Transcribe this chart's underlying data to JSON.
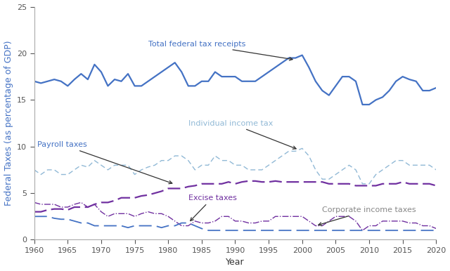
{
  "title": "",
  "xlabel": "Year",
  "ylabel": "Federal Taxes (as percentage of GDP)",
  "xlim": [
    1960,
    2020
  ],
  "ylim": [
    0,
    25
  ],
  "yticks": [
    0,
    5,
    10,
    15,
    20,
    25
  ],
  "xticks": [
    1960,
    1965,
    1970,
    1975,
    1980,
    1985,
    1990,
    1995,
    2000,
    2005,
    2010,
    2015,
    2020
  ],
  "total_federal": {
    "label": "Total federal tax receipts",
    "color": "#4472c4",
    "linestyle": "solid",
    "linewidth": 1.6,
    "years": [
      1960,
      1961,
      1962,
      1963,
      1964,
      1965,
      1966,
      1967,
      1968,
      1969,
      1970,
      1971,
      1972,
      1973,
      1974,
      1975,
      1976,
      1977,
      1978,
      1979,
      1980,
      1981,
      1982,
      1983,
      1984,
      1985,
      1986,
      1987,
      1988,
      1989,
      1990,
      1991,
      1992,
      1993,
      1994,
      1995,
      1996,
      1997,
      1998,
      1999,
      2000,
      2001,
      2002,
      2003,
      2004,
      2005,
      2006,
      2007,
      2008,
      2009,
      2010,
      2011,
      2012,
      2013,
      2014,
      2015,
      2016,
      2017,
      2018,
      2019,
      2020
    ],
    "values": [
      17.0,
      16.8,
      17.0,
      17.2,
      17.0,
      16.5,
      17.2,
      17.8,
      17.2,
      18.8,
      18.0,
      16.5,
      17.2,
      17.0,
      17.8,
      16.5,
      16.5,
      17.0,
      17.5,
      18.0,
      18.5,
      19.0,
      18.0,
      16.5,
      16.5,
      17.0,
      17.0,
      18.0,
      17.5,
      17.5,
      17.5,
      17.0,
      17.0,
      17.0,
      17.5,
      18.0,
      18.5,
      19.0,
      19.5,
      19.5,
      19.8,
      18.5,
      17.0,
      16.0,
      15.5,
      16.5,
      17.5,
      17.5,
      17.0,
      14.5,
      14.5,
      15.0,
      15.3,
      16.0,
      17.0,
      17.5,
      17.2,
      17.0,
      16.0,
      16.0,
      16.3
    ]
  },
  "individual_income": {
    "label": "Individual income tax",
    "color": "#91b9d6",
    "linestyle": "dashed",
    "linewidth": 1.0,
    "dashes": [
      5,
      3
    ],
    "years": [
      1960,
      1961,
      1962,
      1963,
      1964,
      1965,
      1966,
      1967,
      1968,
      1969,
      1970,
      1971,
      1972,
      1973,
      1974,
      1975,
      1976,
      1977,
      1978,
      1979,
      1980,
      1981,
      1982,
      1983,
      1984,
      1985,
      1986,
      1987,
      1988,
      1989,
      1990,
      1991,
      1992,
      1993,
      1994,
      1995,
      1996,
      1997,
      1998,
      1999,
      2000,
      2001,
      2002,
      2003,
      2004,
      2005,
      2006,
      2007,
      2008,
      2009,
      2010,
      2011,
      2012,
      2013,
      2014,
      2015,
      2016,
      2017,
      2018,
      2019,
      2020
    ],
    "values": [
      7.5,
      7.0,
      7.5,
      7.5,
      7.0,
      7.0,
      7.5,
      8.0,
      7.8,
      8.5,
      8.0,
      7.5,
      8.0,
      8.0,
      8.0,
      7.0,
      7.5,
      7.8,
      8.0,
      8.5,
      8.5,
      9.0,
      9.0,
      8.5,
      7.5,
      8.0,
      8.0,
      9.0,
      8.5,
      8.5,
      8.0,
      8.0,
      7.5,
      7.5,
      7.5,
      8.0,
      8.5,
      9.0,
      9.5,
      9.5,
      9.8,
      9.0,
      7.5,
      6.5,
      6.5,
      7.0,
      7.5,
      8.0,
      7.5,
      6.0,
      6.0,
      7.0,
      7.5,
      8.0,
      8.5,
      8.5,
      8.0,
      8.0,
      8.0,
      8.0,
      7.5
    ]
  },
  "payroll": {
    "label": "Payroll taxes",
    "color": "#7030a0",
    "linestyle": "dashed",
    "linewidth": 1.6,
    "dashes": [
      8,
      3
    ],
    "years": [
      1960,
      1961,
      1962,
      1963,
      1964,
      1965,
      1966,
      1967,
      1968,
      1969,
      1970,
      1971,
      1972,
      1973,
      1974,
      1975,
      1976,
      1977,
      1978,
      1979,
      1980,
      1981,
      1982,
      1983,
      1984,
      1985,
      1986,
      1987,
      1988,
      1989,
      1990,
      1991,
      1992,
      1993,
      1994,
      1995,
      1996,
      1997,
      1998,
      1999,
      2000,
      2001,
      2002,
      2003,
      2004,
      2005,
      2006,
      2007,
      2008,
      2009,
      2010,
      2011,
      2012,
      2013,
      2014,
      2015,
      2016,
      2017,
      2018,
      2019,
      2020
    ],
    "values": [
      3.0,
      3.0,
      3.2,
      3.3,
      3.3,
      3.2,
      3.5,
      3.5,
      3.5,
      3.8,
      4.0,
      4.0,
      4.2,
      4.5,
      4.5,
      4.5,
      4.7,
      4.8,
      5.0,
      5.2,
      5.5,
      5.5,
      5.5,
      5.7,
      5.8,
      6.0,
      6.0,
      6.0,
      6.0,
      6.2,
      6.0,
      6.2,
      6.3,
      6.3,
      6.2,
      6.2,
      6.3,
      6.2,
      6.2,
      6.2,
      6.2,
      6.2,
      6.2,
      6.2,
      6.0,
      6.0,
      6.0,
      6.0,
      5.8,
      5.8,
      5.8,
      5.8,
      6.0,
      6.0,
      6.0,
      6.2,
      6.0,
      6.0,
      6.0,
      6.0,
      5.8
    ]
  },
  "corporate": {
    "label": "Corporate income taxes",
    "color": "#7030a0",
    "linestyle": "dashdot",
    "linewidth": 1.0,
    "years": [
      1960,
      1961,
      1962,
      1963,
      1964,
      1965,
      1966,
      1967,
      1968,
      1969,
      1970,
      1971,
      1972,
      1973,
      1974,
      1975,
      1976,
      1977,
      1978,
      1979,
      1980,
      1981,
      1982,
      1983,
      1984,
      1985,
      1986,
      1987,
      1988,
      1989,
      1990,
      1991,
      1992,
      1993,
      1994,
      1995,
      1996,
      1997,
      1998,
      1999,
      2000,
      2001,
      2002,
      2003,
      2004,
      2005,
      2006,
      2007,
      2008,
      2009,
      2010,
      2011,
      2012,
      2013,
      2014,
      2015,
      2016,
      2017,
      2018,
      2019,
      2020
    ],
    "values": [
      4.0,
      3.8,
      3.8,
      3.8,
      3.5,
      3.5,
      3.8,
      4.0,
      3.5,
      3.8,
      3.0,
      2.5,
      2.8,
      2.8,
      2.8,
      2.5,
      2.8,
      3.0,
      2.8,
      2.8,
      2.5,
      2.0,
      1.5,
      1.5,
      2.0,
      1.8,
      1.8,
      2.0,
      2.5,
      2.5,
      2.0,
      2.0,
      1.8,
      1.8,
      2.0,
      2.0,
      2.5,
      2.5,
      2.5,
      2.5,
      2.5,
      2.0,
      1.5,
      1.5,
      2.0,
      2.5,
      2.5,
      2.5,
      2.0,
      1.0,
      1.5,
      1.5,
      2.0,
      2.0,
      2.0,
      2.0,
      1.8,
      1.8,
      1.5,
      1.5,
      1.2
    ]
  },
  "excise": {
    "label": "Excise taxes",
    "color": "#4472c4",
    "linestyle": "dashed",
    "linewidth": 1.3,
    "dashes": [
      10,
      4
    ],
    "years": [
      1960,
      1961,
      1962,
      1963,
      1964,
      1965,
      1966,
      1967,
      1968,
      1969,
      1970,
      1971,
      1972,
      1973,
      1974,
      1975,
      1976,
      1977,
      1978,
      1979,
      1980,
      1981,
      1982,
      1983,
      1984,
      1985,
      1986,
      1987,
      1988,
      1989,
      1990,
      1991,
      1992,
      1993,
      1994,
      1995,
      1996,
      1997,
      1998,
      1999,
      2000,
      2001,
      2002,
      2003,
      2004,
      2005,
      2006,
      2007,
      2008,
      2009,
      2010,
      2011,
      2012,
      2013,
      2014,
      2015,
      2016,
      2017,
      2018,
      2019,
      2020
    ],
    "values": [
      2.5,
      2.5,
      2.5,
      2.3,
      2.2,
      2.2,
      2.0,
      1.8,
      1.8,
      1.5,
      1.5,
      1.5,
      1.5,
      1.5,
      1.3,
      1.5,
      1.5,
      1.5,
      1.5,
      1.3,
      1.5,
      1.5,
      1.8,
      1.8,
      1.5,
      1.2,
      1.0,
      1.0,
      1.0,
      1.0,
      1.0,
      1.0,
      1.0,
      1.0,
      1.0,
      1.0,
      1.0,
      1.0,
      1.0,
      1.0,
      1.0,
      1.0,
      1.0,
      1.0,
      1.0,
      1.0,
      1.0,
      1.0,
      1.0,
      1.0,
      1.0,
      1.0,
      1.0,
      1.0,
      1.0,
      1.0,
      1.0,
      1.0,
      1.0,
      1.0,
      1.0
    ]
  },
  "background_color": "#ffffff",
  "grid": false,
  "ylabel_color": "#4472c4",
  "xlabel_color": "#333333",
  "tick_color": "#555555",
  "label_fontsize": 9,
  "tick_fontsize": 8
}
